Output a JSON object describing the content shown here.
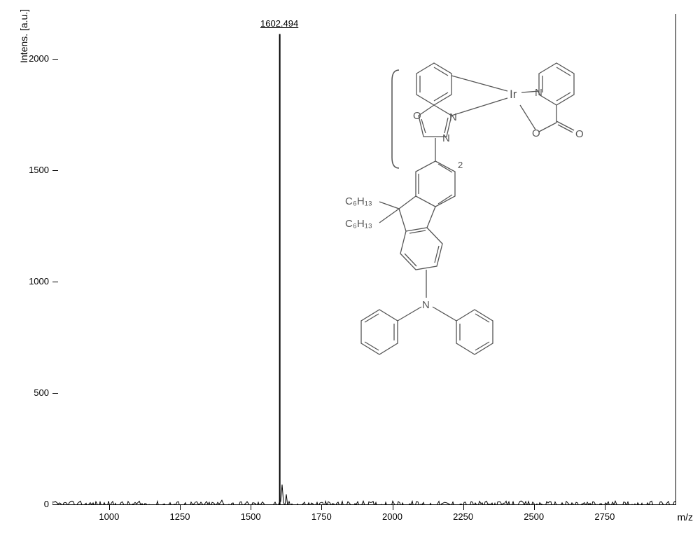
{
  "chart": {
    "type": "mass-spectrum",
    "yaxis": {
      "label": "Intens. [a.u.]",
      "min": 0,
      "max": 2200,
      "ticks": [
        0,
        500,
        1000,
        1500,
        2000
      ],
      "fontsize": 13
    },
    "xaxis": {
      "label": "m/z",
      "min": 800,
      "max": 3000,
      "ticks": [
        1000,
        1250,
        1500,
        1750,
        2000,
        2250,
        2500,
        2750
      ],
      "fontsize": 13
    },
    "peak": {
      "mz": 1602.494,
      "intensity": 2110,
      "label": "1602.494"
    },
    "baseline_noise_level": 15,
    "line_color": "#000000",
    "background_color": "#ffffff",
    "axis_color": "#000000"
  },
  "structure": {
    "atoms": {
      "O_label": "O",
      "N_label": "N",
      "Ir_label": "Ir",
      "subscript_2": "2",
      "C6H13_1": "C₆H₁₃",
      "C6H13_2": "C₆H₁₃"
    },
    "stroke_color": "#555555",
    "stroke_width": 1.3
  }
}
